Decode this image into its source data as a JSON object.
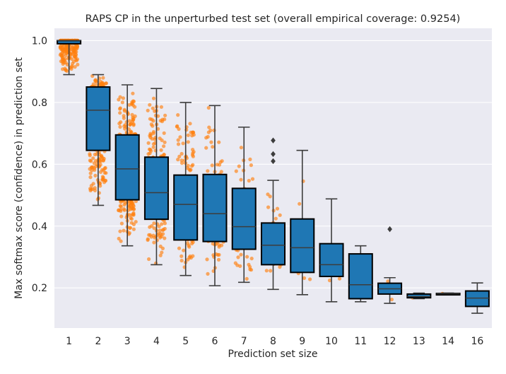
{
  "chart_data": {
    "type": "box",
    "title": "RAPS CP in the unperturbed test set (overall empirical coverage: 0.9254)",
    "xlabel": "Prediction set size",
    "ylabel": "Max softmax score (confidence) in prediction set",
    "categories": [
      "1",
      "2",
      "3",
      "4",
      "5",
      "6",
      "7",
      "8",
      "9",
      "10",
      "11",
      "12",
      "13",
      "14",
      "16"
    ],
    "ylim": [
      0.07,
      1.04
    ],
    "yticks": [
      "0.2",
      "0.4",
      "0.6",
      "0.8",
      "1.0"
    ],
    "grid": true,
    "box_color": "#1f77b4",
    "point_color": "#ff7f0e",
    "background": "#eaeaf2",
    "boxes": [
      {
        "q1": 0.99,
        "median": 1.0,
        "q3": 1.0,
        "whislo": 0.89,
        "whishi": 1.0,
        "fliers": [],
        "n": 300
      },
      {
        "q1": 0.645,
        "median": 0.775,
        "q3": 0.85,
        "whislo": 0.467,
        "whishi": 0.89,
        "fliers": [],
        "n": 420
      },
      {
        "q1": 0.485,
        "median": 0.585,
        "q3": 0.695,
        "whislo": 0.336,
        "whishi": 0.857,
        "fliers": [],
        "n": 320
      },
      {
        "q1": 0.422,
        "median": 0.508,
        "q3": 0.623,
        "whislo": 0.275,
        "whishi": 0.845,
        "fliers": [],
        "n": 200
      },
      {
        "q1": 0.355,
        "median": 0.47,
        "q3": 0.565,
        "whislo": 0.24,
        "whishi": 0.8,
        "fliers": [],
        "n": 130
      },
      {
        "q1": 0.35,
        "median": 0.44,
        "q3": 0.567,
        "whislo": 0.207,
        "whishi": 0.79,
        "fliers": [],
        "n": 110
      },
      {
        "q1": 0.325,
        "median": 0.398,
        "q3": 0.522,
        "whislo": 0.218,
        "whishi": 0.72,
        "fliers": [],
        "n": 65
      },
      {
        "q1": 0.275,
        "median": 0.338,
        "q3": 0.41,
        "whislo": 0.195,
        "whishi": 0.548,
        "fliers": [
          0.61,
          0.633,
          0.677
        ],
        "n": 28
      },
      {
        "q1": 0.25,
        "median": 0.33,
        "q3": 0.423,
        "whislo": 0.178,
        "whishi": 0.645,
        "fliers": [],
        "n": 22
      },
      {
        "q1": 0.237,
        "median": 0.275,
        "q3": 0.343,
        "whislo": 0.155,
        "whishi": 0.488,
        "fliers": [],
        "n": 12
      },
      {
        "q1": 0.165,
        "median": 0.21,
        "q3": 0.31,
        "whislo": 0.155,
        "whishi": 0.336,
        "fliers": [],
        "n": 6
      },
      {
        "q1": 0.18,
        "median": 0.197,
        "q3": 0.215,
        "whislo": 0.15,
        "whishi": 0.233,
        "fliers": [
          0.39
        ],
        "n": 5
      },
      {
        "q1": 0.168,
        "median": 0.172,
        "q3": 0.18,
        "whislo": 0.165,
        "whishi": 0.183,
        "fliers": [],
        "n": 3
      },
      {
        "q1": 0.18,
        "median": 0.181,
        "q3": 0.182,
        "whislo": 0.179,
        "whishi": 0.183,
        "fliers": [],
        "n": 1
      },
      {
        "q1": 0.14,
        "median": 0.167,
        "q3": 0.19,
        "whislo": 0.118,
        "whishi": 0.216,
        "fliers": [],
        "n": 0
      }
    ]
  }
}
